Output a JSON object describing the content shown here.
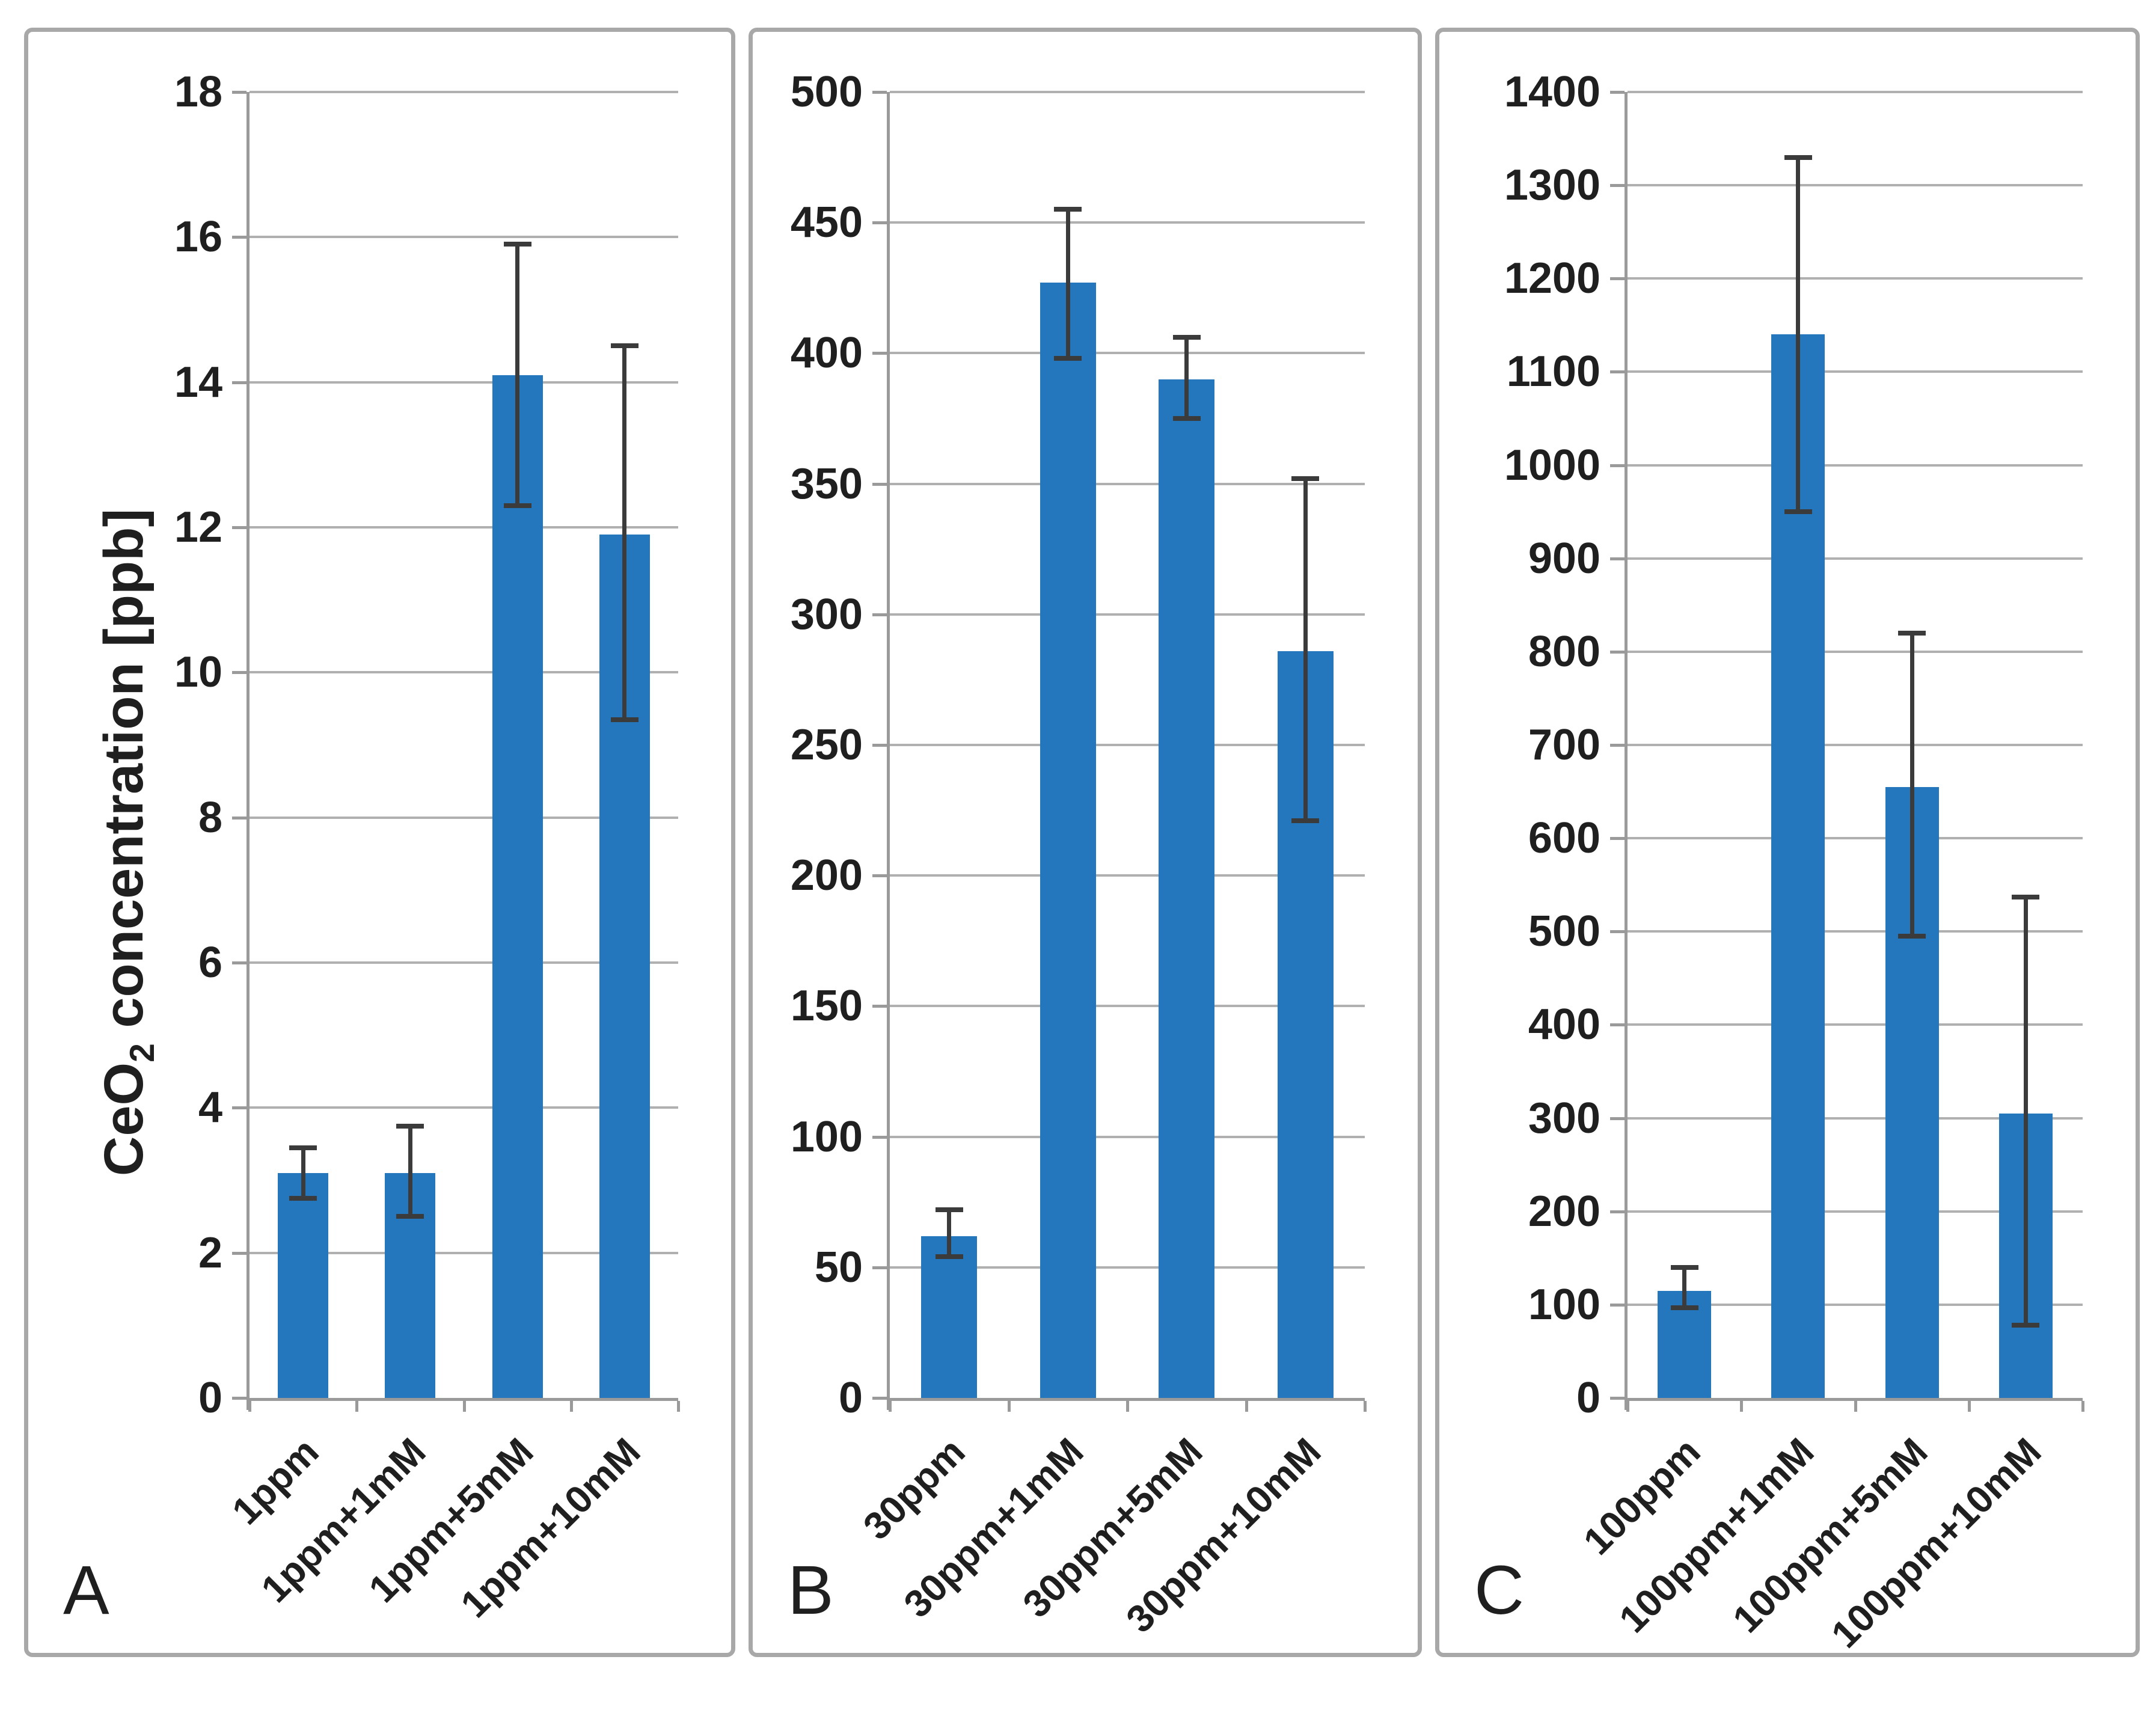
{
  "figure": {
    "y_axis_title": {
      "prefix": "CeO",
      "sub": "2",
      "suffix": " concentration [ppb]"
    },
    "colors": {
      "bar": "#2577BD",
      "error_bar": "#3b3b3b",
      "grid_line": "#b0b0b0",
      "axis_line": "#9a9a9a",
      "text": "#1f1f1f",
      "panel_border": "#a8a8a8"
    }
  },
  "chart_data": [
    {
      "type": "bar",
      "panel_label": "A",
      "ylabel": "CeO2 concentration [ppb]",
      "ylim": [
        0,
        18
      ],
      "ytick_step": 2,
      "grid": true,
      "legend": "none",
      "categories": [
        "1ppm",
        "1ppm+1mM",
        "1ppm+5mM",
        "1ppm+10mM"
      ],
      "values": [
        3.1,
        3.1,
        14.1,
        11.9
      ],
      "error_minus": [
        0.35,
        0.6,
        1.8,
        2.55
      ],
      "error_plus": [
        0.35,
        0.65,
        1.8,
        2.6
      ]
    },
    {
      "type": "bar",
      "panel_label": "B",
      "ylabel": "CeO2 concentration [ppb]",
      "ylim": [
        0,
        500
      ],
      "ytick_step": 50,
      "grid": true,
      "legend": "none",
      "categories": [
        "30ppm",
        "30ppm+1mM",
        "30ppm+5mM",
        "30ppm+10mM"
      ],
      "values": [
        62,
        427,
        390,
        286
      ],
      "error_minus": [
        8,
        29,
        15,
        65
      ],
      "error_plus": [
        10,
        28,
        16,
        66
      ]
    },
    {
      "type": "bar",
      "panel_label": "C",
      "ylabel": "CeO2 concentration [ppb]",
      "ylim": [
        0,
        1400
      ],
      "ytick_step": 100,
      "grid": true,
      "legend": "none",
      "categories": [
        "100ppm",
        "100ppm+1mM",
        "100ppm+5mM",
        "100ppm+10mM"
      ],
      "values": [
        115,
        1140,
        655,
        305
      ],
      "error_minus": [
        18,
        190,
        160,
        227
      ],
      "error_plus": [
        25,
        190,
        165,
        232
      ]
    }
  ]
}
